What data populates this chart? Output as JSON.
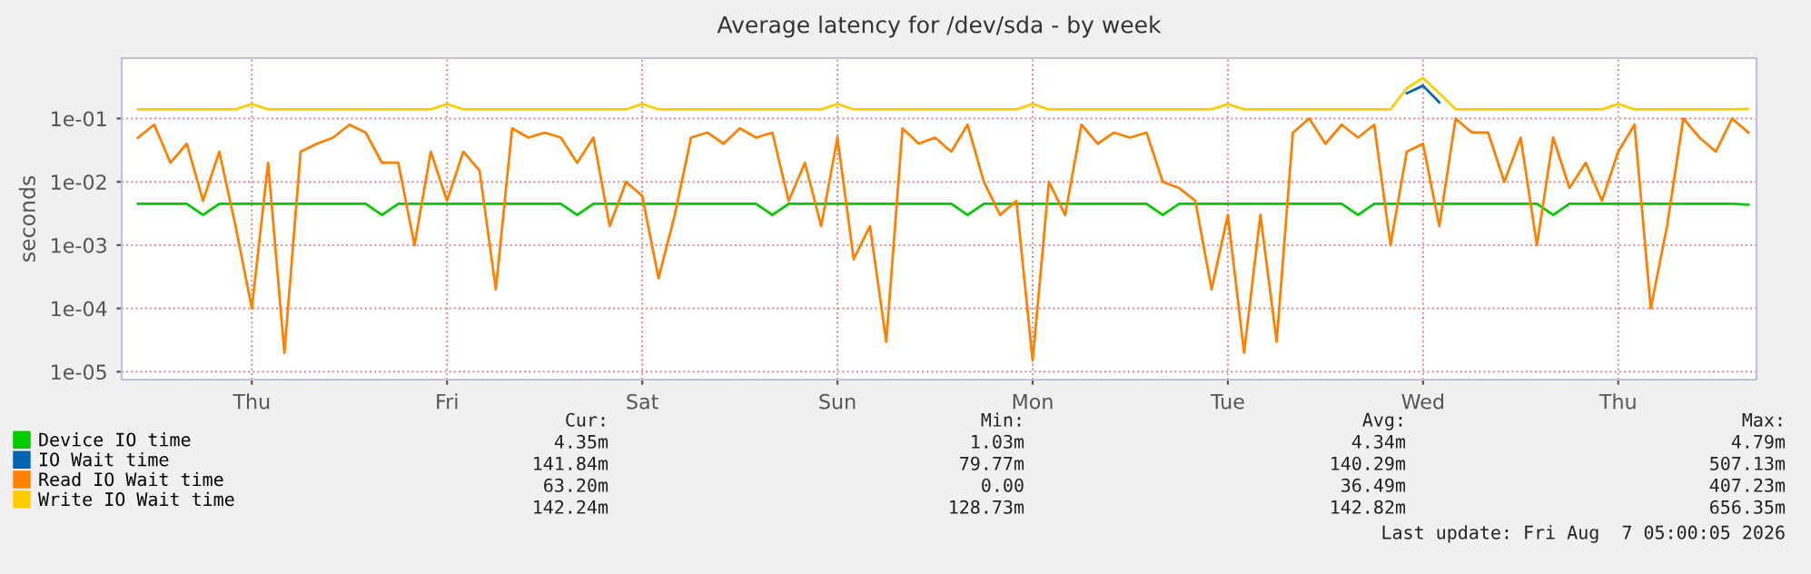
{
  "chart_data": {
    "type": "line",
    "title": "Average latency for /dev/sda - by week",
    "ylabel": "seconds",
    "log": "y",
    "grid": true,
    "legend": "bottom",
    "marker": "none",
    "line_style": "solid",
    "categories": [
      null,
      null,
      null,
      null,
      null,
      null,
      null,
      "Thu",
      null,
      null,
      null,
      null,
      null,
      null,
      null,
      null,
      null,
      null,
      null,
      "Fri",
      null,
      null,
      null,
      null,
      null,
      null,
      null,
      null,
      null,
      null,
      null,
      "Sat",
      null,
      null,
      null,
      null,
      null,
      null,
      null,
      null,
      null,
      null,
      null,
      "Sun",
      null,
      null,
      null,
      null,
      null,
      null,
      null,
      null,
      null,
      null,
      null,
      "Mon",
      null,
      null,
      null,
      null,
      null,
      null,
      null,
      null,
      null,
      null,
      null,
      "Tue",
      null,
      null,
      null,
      null,
      null,
      null,
      null,
      null,
      null,
      null,
      null,
      "Wed",
      null,
      null,
      null,
      null,
      null,
      null,
      null,
      null,
      null,
      null,
      null,
      "Thu",
      null,
      null,
      null,
      null,
      null,
      null,
      null,
      null
    ],
    "series": [
      {
        "name": "Device IO time",
        "color": "#00cc00",
        "values": [
          0.0045,
          0.0045,
          0.0045,
          0.0045,
          0.003,
          0.0045,
          0.0045,
          0.0045,
          0.0045,
          0.0045,
          0.0045,
          0.0045,
          0.0045,
          0.0045,
          0.0045,
          0.003,
          0.0045,
          0.0045,
          0.0045,
          0.0045,
          0.0045,
          0.0045,
          0.0045,
          0.0045,
          0.0045,
          0.0045,
          0.0045,
          0.003,
          0.0045,
          0.0045,
          0.0045,
          0.0045,
          0.0045,
          0.0045,
          0.0045,
          0.0045,
          0.0045,
          0.0045,
          0.0045,
          0.003,
          0.0045,
          0.0045,
          0.0045,
          0.0045,
          0.0045,
          0.0045,
          0.0045,
          0.0045,
          0.0045,
          0.0045,
          0.0045,
          0.003,
          0.0045,
          0.0045,
          0.0045,
          0.0045,
          0.0045,
          0.0045,
          0.0045,
          0.0045,
          0.0045,
          0.0045,
          0.0045,
          0.003,
          0.0045,
          0.0045,
          0.0045,
          0.0045,
          0.0045,
          0.0045,
          0.0045,
          0.0045,
          0.0045,
          0.0045,
          0.0045,
          0.003,
          0.0045,
          0.0045,
          0.0045,
          0.0045,
          0.0045,
          0.0045,
          0.0045,
          0.0045,
          0.0045,
          0.0045,
          0.0045,
          0.003,
          0.0045,
          0.0045,
          0.0045,
          0.0045,
          0.0045,
          0.0045,
          0.0045,
          0.0045,
          0.0045,
          0.0045,
          0.0045,
          0.00435
        ]
      },
      {
        "name": "IO Wait time",
        "color": "#0066b3",
        "values": [
          null,
          null,
          null,
          null,
          null,
          null,
          null,
          null,
          null,
          null,
          null,
          null,
          null,
          null,
          null,
          null,
          null,
          null,
          null,
          null,
          null,
          null,
          null,
          null,
          null,
          null,
          null,
          null,
          null,
          null,
          null,
          null,
          null,
          null,
          null,
          null,
          null,
          null,
          null,
          null,
          null,
          null,
          null,
          null,
          null,
          null,
          null,
          null,
          null,
          null,
          null,
          null,
          null,
          null,
          null,
          null,
          null,
          null,
          null,
          null,
          null,
          null,
          null,
          null,
          null,
          null,
          null,
          null,
          null,
          null,
          null,
          null,
          null,
          null,
          null,
          null,
          null,
          null,
          0.25,
          0.33,
          0.18,
          null,
          null,
          null,
          null,
          null,
          null,
          null,
          null,
          null,
          null,
          null,
          null,
          null,
          null,
          null,
          null,
          null,
          null,
          null
        ]
      },
      {
        "name": "Read IO Wait time",
        "color": "#ff8000",
        "values": [
          0.05,
          0.08,
          0.02,
          0.04,
          0.005,
          0.03,
          0.002,
          0.0001,
          0.02,
          2e-05,
          0.03,
          0.04,
          0.05,
          0.08,
          0.06,
          0.02,
          0.02,
          0.001,
          0.03,
          0.005,
          0.03,
          0.015,
          0.0002,
          0.07,
          0.05,
          0.06,
          0.05,
          0.02,
          0.05,
          0.002,
          0.01,
          0.006,
          0.0003,
          0.003,
          0.05,
          0.06,
          0.04,
          0.07,
          0.05,
          0.06,
          0.005,
          0.02,
          0.002,
          0.05,
          0.0006,
          0.002,
          3e-05,
          0.07,
          0.04,
          0.05,
          0.03,
          0.08,
          0.01,
          0.003,
          0.005,
          1.5e-05,
          0.01,
          0.003,
          0.08,
          0.04,
          0.06,
          0.05,
          0.06,
          0.01,
          0.008,
          0.005,
          0.0002,
          0.003,
          2e-05,
          0.003,
          3e-05,
          0.06,
          0.1,
          0.04,
          0.08,
          0.05,
          0.08,
          0.001,
          0.03,
          0.04,
          0.002,
          0.1,
          0.06,
          0.06,
          0.01,
          0.05,
          0.001,
          0.05,
          0.008,
          0.02,
          0.005,
          0.03,
          0.08,
          0.0001,
          0.002,
          0.1,
          0.05,
          0.03,
          0.1,
          0.06
        ]
      },
      {
        "name": "Write IO Wait time",
        "color": "#ffcc00",
        "values": [
          0.14,
          0.14,
          0.14,
          0.14,
          0.14,
          0.14,
          0.14,
          0.17,
          0.14,
          0.14,
          0.14,
          0.14,
          0.14,
          0.14,
          0.14,
          0.14,
          0.14,
          0.14,
          0.14,
          0.17,
          0.14,
          0.14,
          0.14,
          0.14,
          0.14,
          0.14,
          0.14,
          0.14,
          0.14,
          0.14,
          0.14,
          0.17,
          0.14,
          0.14,
          0.14,
          0.14,
          0.14,
          0.14,
          0.14,
          0.14,
          0.14,
          0.14,
          0.14,
          0.17,
          0.14,
          0.14,
          0.14,
          0.14,
          0.14,
          0.14,
          0.14,
          0.14,
          0.14,
          0.14,
          0.14,
          0.17,
          0.14,
          0.14,
          0.14,
          0.14,
          0.14,
          0.14,
          0.14,
          0.14,
          0.14,
          0.14,
          0.14,
          0.17,
          0.14,
          0.14,
          0.14,
          0.14,
          0.14,
          0.14,
          0.14,
          0.14,
          0.14,
          0.14,
          0.3,
          0.44,
          0.25,
          0.14,
          0.14,
          0.14,
          0.14,
          0.14,
          0.14,
          0.14,
          0.14,
          0.14,
          0.14,
          0.17,
          0.14,
          0.14,
          0.14,
          0.14,
          0.14,
          0.14,
          0.14,
          0.142
        ]
      }
    ],
    "ylim": [
      7.5e-06,
      0.9
    ],
    "yticks": [
      {
        "value": 1e-05,
        "label": "1e-05"
      },
      {
        "value": 0.0001,
        "label": "1e-04"
      },
      {
        "value": 0.001,
        "label": "1e-03"
      },
      {
        "value": 0.01,
        "label": "1e-02"
      },
      {
        "value": 0.1,
        "label": "1e-01"
      }
    ],
    "annotations": [
      "Cur:",
      "Min:",
      "Avg:",
      "Max:",
      "4.35m",
      "1.03m",
      "4.34m",
      "4.79m",
      "141.84m",
      "79.77m",
      "140.29m",
      "507.13m",
      "63.20m",
      "0.00",
      "36.49m",
      "407.23m",
      "142.24m",
      "128.73m",
      "142.82m",
      "656.35m",
      "Last update: Fri Aug  7 05:00:05 2026"
    ]
  }
}
